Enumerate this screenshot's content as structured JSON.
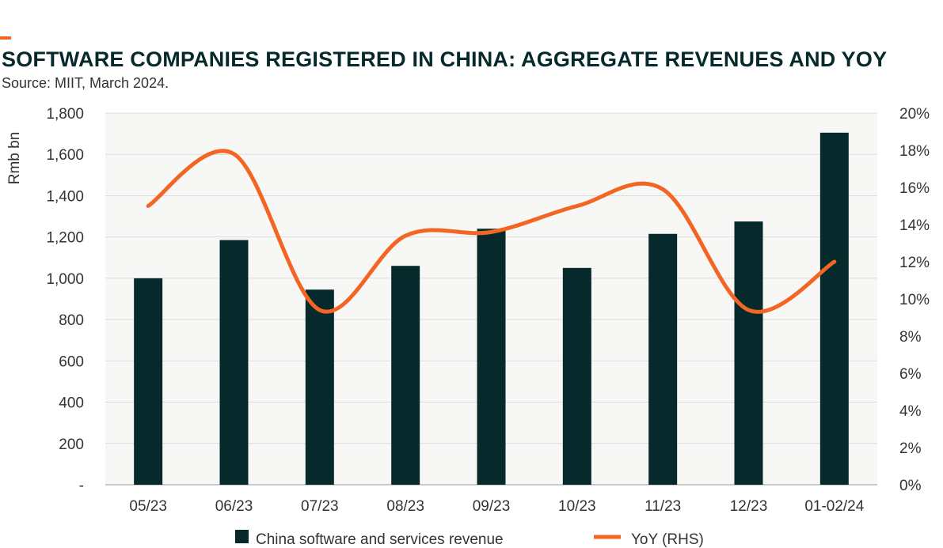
{
  "header": {
    "title": "SOFTWARE COMPANIES REGISTERED IN CHINA: AGGREGATE REVENUES AND YOY",
    "source": "Source: MIIT, March 2024."
  },
  "colors": {
    "bar": "#062a2c",
    "line": "#f26522",
    "plot_bg": "#f7f7f5",
    "accent": "#f26522"
  },
  "chart_data": {
    "type": "bar",
    "categories": [
      "05/23",
      "06/23",
      "07/23",
      "08/23",
      "09/23",
      "10/23",
      "11/23",
      "12/23",
      "01-02/24"
    ],
    "series": [
      {
        "name": "China software and services revenue",
        "type": "bar",
        "axis": "left",
        "values": [
          1000,
          1185,
          945,
          1060,
          1240,
          1050,
          1215,
          1275,
          1705
        ]
      },
      {
        "name": "YoY (RHS)",
        "type": "line",
        "axis": "right",
        "values": [
          15.0,
          17.8,
          9.4,
          13.4,
          13.6,
          15.0,
          15.9,
          9.4,
          12.0
        ]
      }
    ],
    "ylabel": "Rmb bn",
    "ylim": [
      0,
      1800
    ],
    "y_ticks": [
      "-",
      "200",
      "400",
      "600",
      "800",
      "1,000",
      "1,200",
      "1,400",
      "1,600",
      "1,800"
    ],
    "y2lim": [
      0,
      20
    ],
    "y2_ticks": [
      "0%",
      "2%",
      "4%",
      "6%",
      "8%",
      "10%",
      "12%",
      "14%",
      "16%",
      "18%",
      "20%"
    ],
    "grid": true,
    "legend_position": "bottom"
  }
}
